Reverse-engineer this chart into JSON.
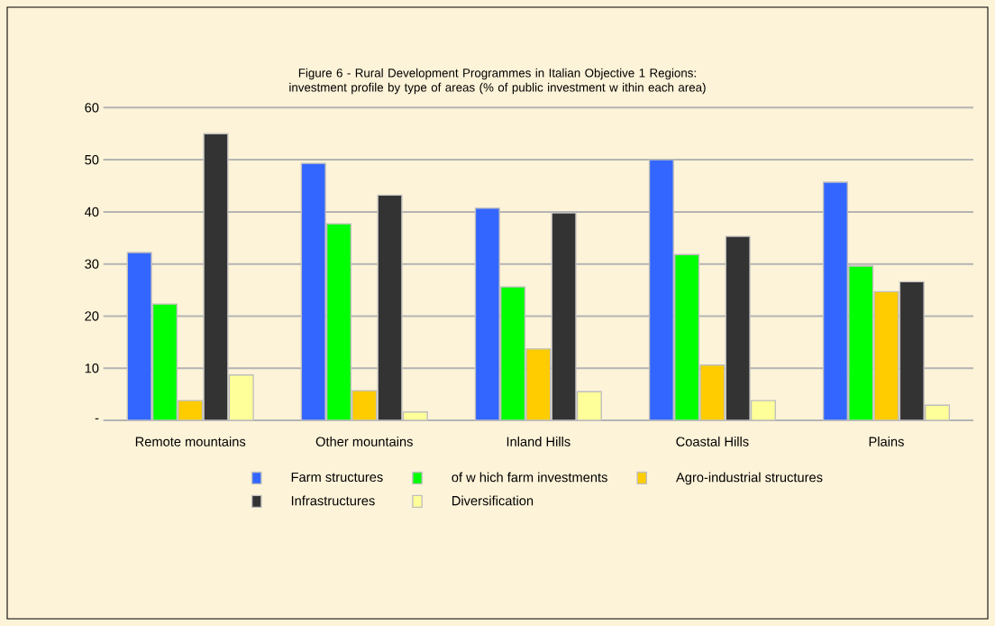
{
  "chart_data": {
    "type": "bar",
    "title": "Figure 6 - Rural Development Programmes in Italian Objective 1 Regions: investment profile by type of areas (% of public investment w ithin each area)",
    "categories": [
      "Remote mountains",
      "Other mountains",
      "Inland Hills",
      "Coastal Hills",
      "Plains"
    ],
    "series": [
      {
        "name": "Farm structures",
        "color": "#3366ff",
        "values": [
          32.2,
          49.3,
          40.7,
          50.0,
          45.7
        ]
      },
      {
        "name": "of w hich farm investments",
        "color": "#00ff00",
        "values": [
          22.3,
          37.7,
          25.6,
          31.8,
          29.6
        ]
      },
      {
        "name": "Agro-industrial structures",
        "color": "#ffcc00",
        "values": [
          3.8,
          5.7,
          13.7,
          10.6,
          24.7
        ]
      },
      {
        "name": "Infrastructures",
        "color": "#333333",
        "values": [
          55.0,
          43.2,
          39.8,
          35.3,
          26.6
        ]
      },
      {
        "name": "Diversification",
        "color": "#ffff99",
        "values": [
          8.7,
          1.6,
          5.5,
          3.8,
          2.9
        ]
      }
    ],
    "ylim": [
      0,
      60
    ],
    "yticks": [
      {
        "value": 0,
        "label": "-"
      },
      10,
      20,
      30,
      40,
      50,
      60
    ],
    "grid": "y",
    "legend": "bottom"
  }
}
